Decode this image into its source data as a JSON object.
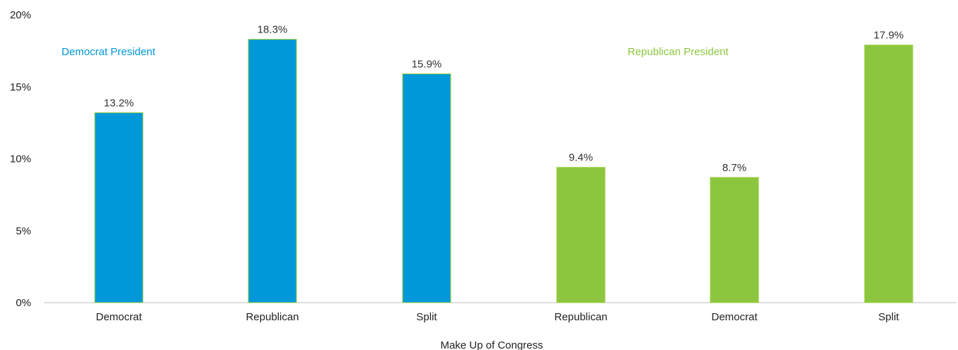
{
  "chart_data": {
    "type": "bar",
    "title": "",
    "xlabel": "Make Up of Congress",
    "ylabel": "",
    "ylim": [
      0,
      20
    ],
    "yticks": [
      "0%",
      "5%",
      "10%",
      "15%",
      "20%"
    ],
    "grid": false,
    "legend": "none",
    "groups": [
      {
        "name": "Democrat President",
        "color": "#0098D8",
        "categories": [
          "Democrat",
          "Republican",
          "Split"
        ],
        "values": [
          13.2,
          18.3,
          15.9
        ],
        "labels": [
          "13.2%",
          "18.3%",
          "15.9%"
        ]
      },
      {
        "name": "Republican President",
        "color": "#8CC63F",
        "categories": [
          "Republican",
          "Democrat",
          "Split"
        ],
        "values": [
          9.4,
          8.7,
          17.9
        ],
        "labels": [
          "9.4%",
          "8.7%",
          "17.9%"
        ]
      }
    ]
  }
}
